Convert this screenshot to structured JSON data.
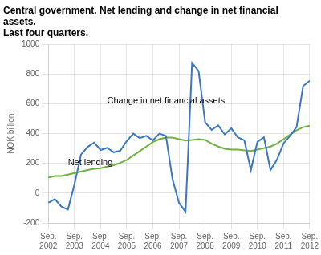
{
  "chart_data": {
    "type": "line",
    "title": "Central government. Net lending and change in net financial assets.",
    "subtitle": "Last four quarters.",
    "ylabel": "NOK billion",
    "categories": [
      "Sep.\n2002",
      null,
      null,
      null,
      "Sep.\n2003",
      null,
      null,
      null,
      "Sep.\n2004",
      null,
      null,
      null,
      "Sep.\n2005",
      null,
      null,
      null,
      "Sep.\n2006",
      null,
      null,
      null,
      "Sep.\n2007",
      null,
      null,
      null,
      "Sep.\n2008",
      null,
      null,
      null,
      "Sep.\n2009",
      null,
      null,
      null,
      "Sep.\n2010",
      null,
      null,
      null,
      "Sep.\n2011",
      null,
      null,
      null,
      "Sep.\n2012"
    ],
    "series": [
      {
        "name": "Change in net financial assets",
        "color": "#3B78C4",
        "values": [
          -65,
          -40,
          -90,
          -110,
          60,
          260,
          310,
          340,
          290,
          305,
          275,
          285,
          350,
          400,
          370,
          385,
          355,
          400,
          385,
          95,
          -65,
          -125,
          875,
          820,
          475,
          425,
          455,
          395,
          435,
          375,
          355,
          155,
          345,
          375,
          155,
          225,
          335,
          385,
          445,
          720,
          755
        ]
      },
      {
        "name": "Net lending",
        "color": "#72B043",
        "values": [
          105,
          115,
          115,
          125,
          135,
          145,
          155,
          163,
          168,
          178,
          188,
          203,
          223,
          253,
          283,
          313,
          343,
          363,
          373,
          373,
          363,
          353,
          358,
          363,
          358,
          333,
          313,
          298,
          293,
          293,
          288,
          283,
          293,
          303,
          313,
          333,
          363,
          393,
          423,
          443,
          453
        ]
      }
    ],
    "ylim": [
      -200,
      1000
    ],
    "yticks": [
      -200,
      0,
      200,
      400,
      600,
      800,
      1000
    ],
    "grid": true,
    "annotations": [
      {
        "text": "Change in net financial assets",
        "x": 9,
        "y": 590
      },
      {
        "text": "Net lending",
        "x": 3,
        "y": 175
      }
    ]
  }
}
